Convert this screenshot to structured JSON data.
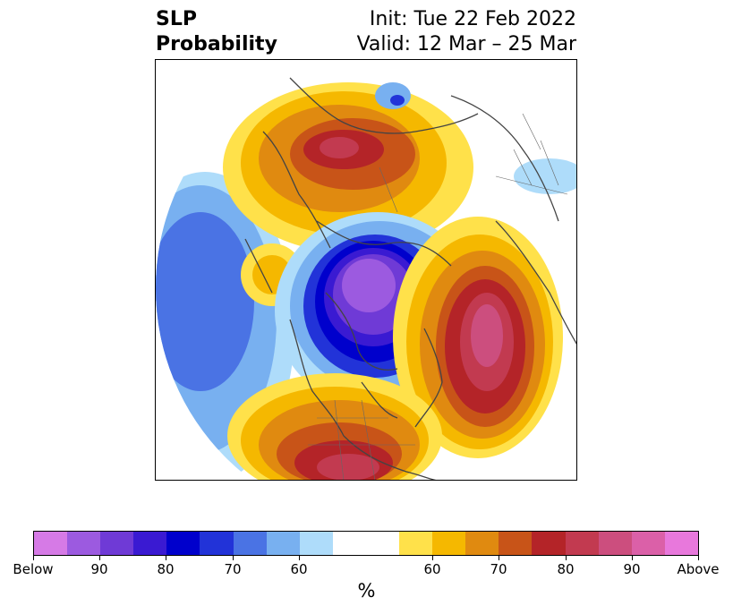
{
  "title": {
    "left_line1": "SLP",
    "left_line2": "Probability",
    "right_line1": "Init: Tue 22 Feb 2022",
    "right_line2": "Valid: 12 Mar – 25 Mar"
  },
  "colorbar": {
    "colors": [
      "#d67ae6",
      "#9c5ae0",
      "#6f3ad6",
      "#3a1ad2",
      "#0000cc",
      "#2233d8",
      "#4a73e4",
      "#78b0f0",
      "#aedcfa",
      "#ffffff",
      "#ffffff",
      "#ffe14a",
      "#f5b800",
      "#e08a10",
      "#c85418",
      "#b42428",
      "#c23a50",
      "#cc4e7e",
      "#db60a8",
      "#e878dc"
    ],
    "labels": [
      "Below",
      "90",
      "80",
      "70",
      "60",
      "60",
      "70",
      "80",
      "90",
      "Above"
    ],
    "unit": "%"
  },
  "map": {
    "ocean": "#ffffff",
    "coastline": "#444444"
  }
}
